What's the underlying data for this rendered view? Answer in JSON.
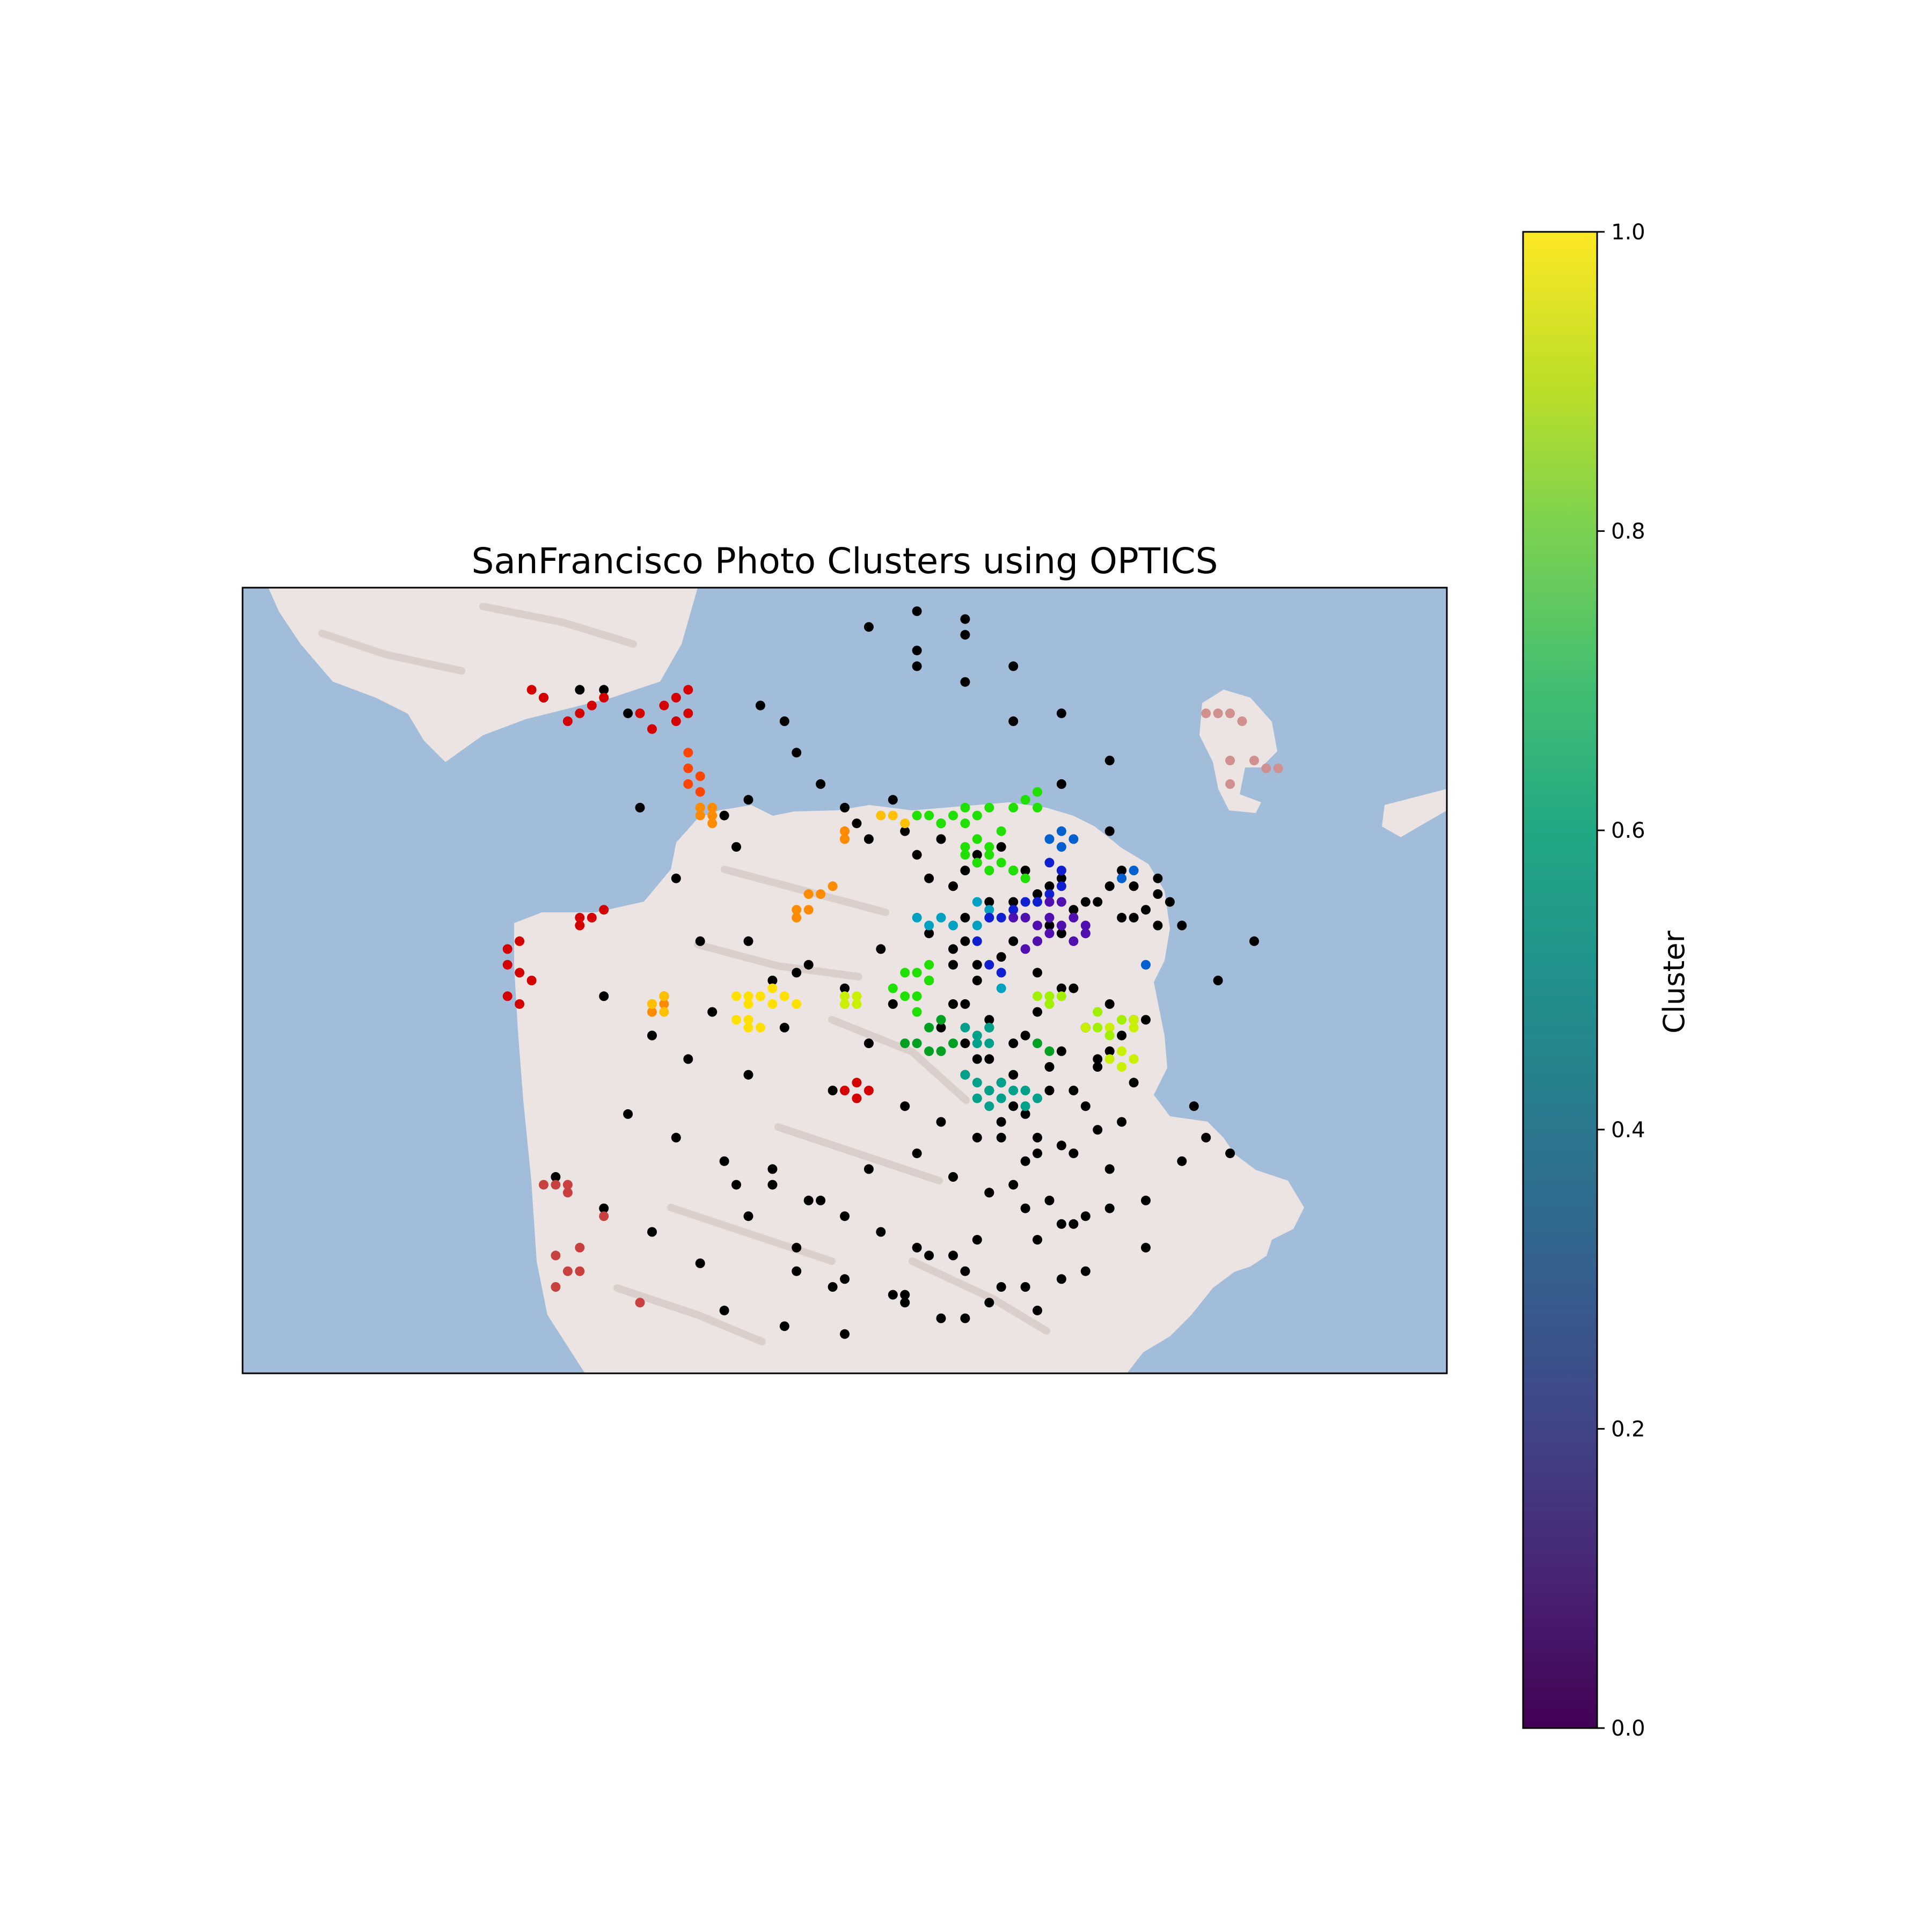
{
  "title": "SanFrancisco Photo Clusters using OPTICS",
  "colorbar": {
    "label": "Cluster",
    "colormap": "viridis",
    "range": [
      0,
      1
    ],
    "ticks": [
      "0.0",
      "0.2",
      "0.4",
      "0.6",
      "0.8",
      "1.0"
    ],
    "stops": [
      "#440154",
      "#482475",
      "#414487",
      "#355f8d",
      "#2a788e",
      "#21918c",
      "#22a884",
      "#44bf70",
      "#7ad151",
      "#bddf26",
      "#fde725"
    ]
  },
  "colors": {
    "water": "#a2bdd9",
    "land": "#ece4e2",
    "land_shade": "#cdbdb8",
    "noise_points": "#000000"
  },
  "chart_data": {
    "type": "scatter",
    "title": "SanFrancisco Photo Clusters using OPTICS",
    "xlabel": "",
    "ylabel": "",
    "xlim": [
      0,
      1
    ],
    "ylim": [
      0,
      1
    ],
    "grid": false,
    "legend": "colorbar-right",
    "note_axes": "map axes carry no ticks; point positions are normalized map coordinates (0 = left/bottom, 1 = right/top)",
    "series": [
      {
        "color": "#000000",
        "x": [
          0.25,
          0.28,
          0.3,
          0.32,
          0.33,
          0.36,
          0.38,
          0.4,
          0.41,
          0.42,
          0.43,
          0.45,
          0.46,
          0.48,
          0.5,
          0.51,
          0.52,
          0.54,
          0.55,
          0.56,
          0.57,
          0.58,
          0.59,
          0.6,
          0.61,
          0.62,
          0.63,
          0.64,
          0.65,
          0.66,
          0.67,
          0.68,
          0.69,
          0.7,
          0.71,
          0.72,
          0.73,
          0.74,
          0.75,
          0.76,
          0.3,
          0.35,
          0.39,
          0.44,
          0.47,
          0.53,
          0.57,
          0.6,
          0.62,
          0.64,
          0.66,
          0.68,
          0.7,
          0.72,
          0.74,
          0.34,
          0.37,
          0.42,
          0.45,
          0.49,
          0.52,
          0.55,
          0.58,
          0.61,
          0.63,
          0.65,
          0.67,
          0.69,
          0.71,
          0.73,
          0.32,
          0.36,
          0.4,
          0.44,
          0.48,
          0.52,
          0.56,
          0.59,
          0.62,
          0.65,
          0.68,
          0.71,
          0.26,
          0.3,
          0.34,
          0.38,
          0.42,
          0.46,
          0.5,
          0.54,
          0.57,
          0.6,
          0.63,
          0.66,
          0.69,
          0.72,
          0.75,
          0.78,
          0.8,
          0.82,
          0.4,
          0.45,
          0.5,
          0.55,
          0.6,
          0.65,
          0.7,
          0.75,
          0.79,
          0.81,
          0.84,
          0.52,
          0.56,
          0.6,
          0.64,
          0.68,
          0.72,
          0.76,
          0.56,
          0.6,
          0.64,
          0.68,
          0.72,
          0.6,
          0.64,
          0.68,
          0.74,
          0.77,
          0.58,
          0.61,
          0.64,
          0.67,
          0.7,
          0.73,
          0.76,
          0.78,
          0.6,
          0.63,
          0.66,
          0.69,
          0.72,
          0.75,
          0.59,
          0.62,
          0.65,
          0.68,
          0.71,
          0.74,
          0.61,
          0.64,
          0.67,
          0.7,
          0.73,
          0.63,
          0.66,
          0.69,
          0.72,
          0.64,
          0.67,
          0.7,
          0.62,
          0.65,
          0.68,
          0.63,
          0.66,
          0.6,
          0.62,
          0.64,
          0.58,
          0.6,
          0.62,
          0.59,
          0.61,
          0.57,
          0.59,
          0.61,
          0.46,
          0.49,
          0.55,
          0.58,
          0.62,
          0.66,
          0.68,
          0.41,
          0.44,
          0.47,
          0.5,
          0.53,
          0.56,
          0.59,
          0.61,
          0.56,
          0.6,
          0.42,
          0.46,
          0.5,
          0.54
        ],
        "y": [
          0.86,
          0.87,
          0.87,
          0.84,
          0.72,
          0.63,
          0.55,
          0.71,
          0.67,
          0.73,
          0.85,
          0.83,
          0.79,
          0.75,
          0.72,
          0.7,
          0.68,
          0.73,
          0.69,
          0.66,
          0.63,
          0.7,
          0.62,
          0.58,
          0.65,
          0.6,
          0.67,
          0.55,
          0.64,
          0.61,
          0.57,
          0.63,
          0.59,
          0.56,
          0.6,
          0.62,
          0.64,
          0.58,
          0.59,
          0.57,
          0.48,
          0.48,
          0.46,
          0.5,
          0.52,
          0.54,
          0.5,
          0.47,
          0.44,
          0.42,
          0.46,
          0.49,
          0.44,
          0.41,
          0.45,
          0.43,
          0.4,
          0.38,
          0.44,
          0.36,
          0.42,
          0.34,
          0.32,
          0.3,
          0.37,
          0.33,
          0.39,
          0.36,
          0.4,
          0.43,
          0.33,
          0.3,
          0.27,
          0.24,
          0.22,
          0.26,
          0.28,
          0.25,
          0.23,
          0.27,
          0.29,
          0.31,
          0.25,
          0.21,
          0.18,
          0.14,
          0.2,
          0.16,
          0.12,
          0.1,
          0.15,
          0.13,
          0.11,
          0.17,
          0.19,
          0.21,
          0.22,
          0.27,
          0.3,
          0.28,
          0.08,
          0.06,
          0.05,
          0.09,
          0.07,
          0.11,
          0.13,
          0.16,
          0.34,
          0.5,
          0.55,
          0.95,
          0.9,
          0.88,
          0.83,
          0.75,
          0.69,
          0.61,
          0.92,
          0.96,
          0.9,
          0.84,
          0.78,
          0.64,
          0.6,
          0.56,
          0.62,
          0.6,
          0.68,
          0.66,
          0.64,
          0.62,
          0.6,
          0.58,
          0.63,
          0.57,
          0.55,
          0.53,
          0.51,
          0.49,
          0.47,
          0.45,
          0.47,
          0.45,
          0.43,
          0.41,
          0.39,
          0.37,
          0.4,
          0.38,
          0.36,
          0.34,
          0.32,
          0.32,
          0.3,
          0.28,
          0.26,
          0.24,
          0.22,
          0.2,
          0.23,
          0.21,
          0.19,
          0.3,
          0.28,
          0.38,
          0.36,
          0.34,
          0.44,
          0.42,
          0.4,
          0.52,
          0.5,
          0.56,
          0.54,
          0.52,
          0.13,
          0.11,
          0.1,
          0.07,
          0.09,
          0.08,
          0.12,
          0.24,
          0.26,
          0.22,
          0.2,
          0.18,
          0.16,
          0.15,
          0.17,
          0.97,
          0.94,
          0.55,
          0.51,
          0.49,
          0.47
        ]
      },
      {
        "color": "#d40000",
        "x": [
          0.24,
          0.25,
          0.27,
          0.28,
          0.29,
          0.3,
          0.35,
          0.36,
          0.37,
          0.37,
          0.36,
          0.34,
          0.33,
          0.22,
          0.23,
          0.22,
          0.23,
          0.22,
          0.23,
          0.24,
          0.28,
          0.28,
          0.29,
          0.3,
          0.5,
          0.51,
          0.52,
          0.51
        ],
        "y": [
          0.87,
          0.86,
          0.83,
          0.84,
          0.85,
          0.86,
          0.85,
          0.86,
          0.87,
          0.84,
          0.83,
          0.82,
          0.84,
          0.54,
          0.55,
          0.52,
          0.51,
          0.48,
          0.47,
          0.5,
          0.58,
          0.57,
          0.58,
          0.59,
          0.36,
          0.37,
          0.36,
          0.35
        ]
      },
      {
        "color": "#ff4500",
        "x": [
          0.37,
          0.37,
          0.38,
          0.37,
          0.38,
          0.38
        ],
        "y": [
          0.79,
          0.77,
          0.76,
          0.75,
          0.74,
          0.72
        ]
      },
      {
        "color": "#ff8c00",
        "x": [
          0.38,
          0.38,
          0.39,
          0.39,
          0.39,
          0.5,
          0.5,
          0.5,
          0.47,
          0.48,
          0.49,
          0.46,
          0.46,
          0.47,
          0.34,
          0.35,
          0.35,
          0.34
        ],
        "y": [
          0.72,
          0.71,
          0.7,
          0.71,
          0.72,
          0.69,
          0.68,
          0.68,
          0.61,
          0.61,
          0.62,
          0.58,
          0.59,
          0.59,
          0.47,
          0.47,
          0.48,
          0.46
        ]
      },
      {
        "color": "#ffc000",
        "x": [
          0.53,
          0.54,
          0.55,
          0.34,
          0.35,
          0.35
        ],
        "y": [
          0.71,
          0.71,
          0.7,
          0.47,
          0.48,
          0.46
        ]
      },
      {
        "color": "#ffe000",
        "x": [
          0.41,
          0.42,
          0.42,
          0.43,
          0.44,
          0.44,
          0.45,
          0.46,
          0.42,
          0.41,
          0.42,
          0.43
        ],
        "y": [
          0.48,
          0.48,
          0.47,
          0.48,
          0.49,
          0.47,
          0.48,
          0.47,
          0.45,
          0.45,
          0.44,
          0.44
        ]
      },
      {
        "color": "#c8f000",
        "x": [
          0.5,
          0.51,
          0.5,
          0.51,
          0.72,
          0.73,
          0.73,
          0.74,
          0.7,
          0.71,
          0.72,
          0.73,
          0.74,
          0.74
        ],
        "y": [
          0.47,
          0.47,
          0.48,
          0.48,
          0.4,
          0.39,
          0.41,
          0.4,
          0.44,
          0.44,
          0.44,
          0.45,
          0.44,
          0.45
        ]
      },
      {
        "color": "#a0f000",
        "x": [
          0.66,
          0.67,
          0.67,
          0.68,
          0.71,
          0.72,
          0.73,
          0.71
        ],
        "y": [
          0.48,
          0.48,
          0.47,
          0.48,
          0.44,
          0.43,
          0.45,
          0.46
        ]
      },
      {
        "color": "#20e000",
        "x": [
          0.56,
          0.57,
          0.58,
          0.59,
          0.6,
          0.6,
          0.61,
          0.62,
          0.63,
          0.61,
          0.6,
          0.62,
          0.64,
          0.65,
          0.66,
          0.66,
          0.62,
          0.61,
          0.6,
          0.62,
          0.64,
          0.65,
          0.63,
          0.55,
          0.56,
          0.57,
          0.57,
          0.54,
          0.55,
          0.56,
          0.56
        ],
        "y": [
          0.71,
          0.71,
          0.7,
          0.71,
          0.7,
          0.72,
          0.71,
          0.72,
          0.69,
          0.68,
          0.67,
          0.67,
          0.72,
          0.73,
          0.74,
          0.72,
          0.66,
          0.65,
          0.66,
          0.64,
          0.64,
          0.63,
          0.65,
          0.51,
          0.51,
          0.5,
          0.52,
          0.49,
          0.48,
          0.48,
          0.46
        ]
      },
      {
        "color": "#00a020",
        "x": [
          0.55,
          0.56,
          0.57,
          0.58,
          0.59,
          0.57,
          0.58,
          0.66,
          0.67
        ],
        "y": [
          0.42,
          0.42,
          0.41,
          0.41,
          0.42,
          0.44,
          0.45,
          0.42,
          0.41
        ]
      },
      {
        "color": "#00a08a",
        "x": [
          0.6,
          0.61,
          0.62,
          0.61,
          0.62,
          0.6,
          0.61,
          0.62,
          0.63,
          0.64,
          0.61,
          0.62,
          0.63,
          0.65,
          0.66,
          0.65
        ],
        "y": [
          0.44,
          0.43,
          0.44,
          0.42,
          0.42,
          0.38,
          0.37,
          0.36,
          0.37,
          0.36,
          0.35,
          0.34,
          0.35,
          0.36,
          0.35,
          0.34
        ]
      },
      {
        "color": "#00a0c0",
        "x": [
          0.56,
          0.57,
          0.58,
          0.59,
          0.61,
          0.62,
          0.61,
          0.62,
          0.63
        ],
        "y": [
          0.58,
          0.57,
          0.58,
          0.57,
          0.6,
          0.59,
          0.57,
          0.58,
          0.49
        ]
      },
      {
        "color": "#0060d0",
        "x": [
          0.67,
          0.68,
          0.69,
          0.68,
          0.73,
          0.74,
          0.75
        ],
        "y": [
          0.68,
          0.67,
          0.68,
          0.69,
          0.63,
          0.64,
          0.52
        ]
      },
      {
        "color": "#1020d0",
        "x": [
          0.67,
          0.68,
          0.68,
          0.67,
          0.66,
          0.65,
          0.64,
          0.63,
          0.62,
          0.61,
          0.62,
          0.63
        ],
        "y": [
          0.65,
          0.64,
          0.62,
          0.61,
          0.6,
          0.6,
          0.59,
          0.58,
          0.58,
          0.55,
          0.52,
          0.51
        ]
      },
      {
        "color": "#5010b0",
        "x": [
          0.64,
          0.65,
          0.66,
          0.67,
          0.68,
          0.69,
          0.7,
          0.67,
          0.68,
          0.66,
          0.67,
          0.69,
          0.7,
          0.65,
          0.66
        ],
        "y": [
          0.58,
          0.58,
          0.57,
          0.58,
          0.57,
          0.58,
          0.57,
          0.6,
          0.6,
          0.55,
          0.56,
          0.55,
          0.56,
          0.54,
          0.55
        ]
      },
      {
        "color": "#c84040",
        "x": [
          0.25,
          0.26,
          0.27,
          0.27,
          0.26,
          0.28,
          0.27,
          0.26,
          0.28,
          0.3,
          0.33
        ],
        "y": [
          0.24,
          0.24,
          0.23,
          0.24,
          0.15,
          0.13,
          0.13,
          0.11,
          0.16,
          0.2,
          0.09
        ]
      },
      {
        "color": "#d09090",
        "x": [
          0.8,
          0.81,
          0.82,
          0.83,
          0.84,
          0.82,
          0.85,
          0.86,
          0.82
        ],
        "y": [
          0.84,
          0.84,
          0.84,
          0.83,
          0.78,
          0.78,
          0.77,
          0.77,
          0.75
        ]
      }
    ]
  }
}
